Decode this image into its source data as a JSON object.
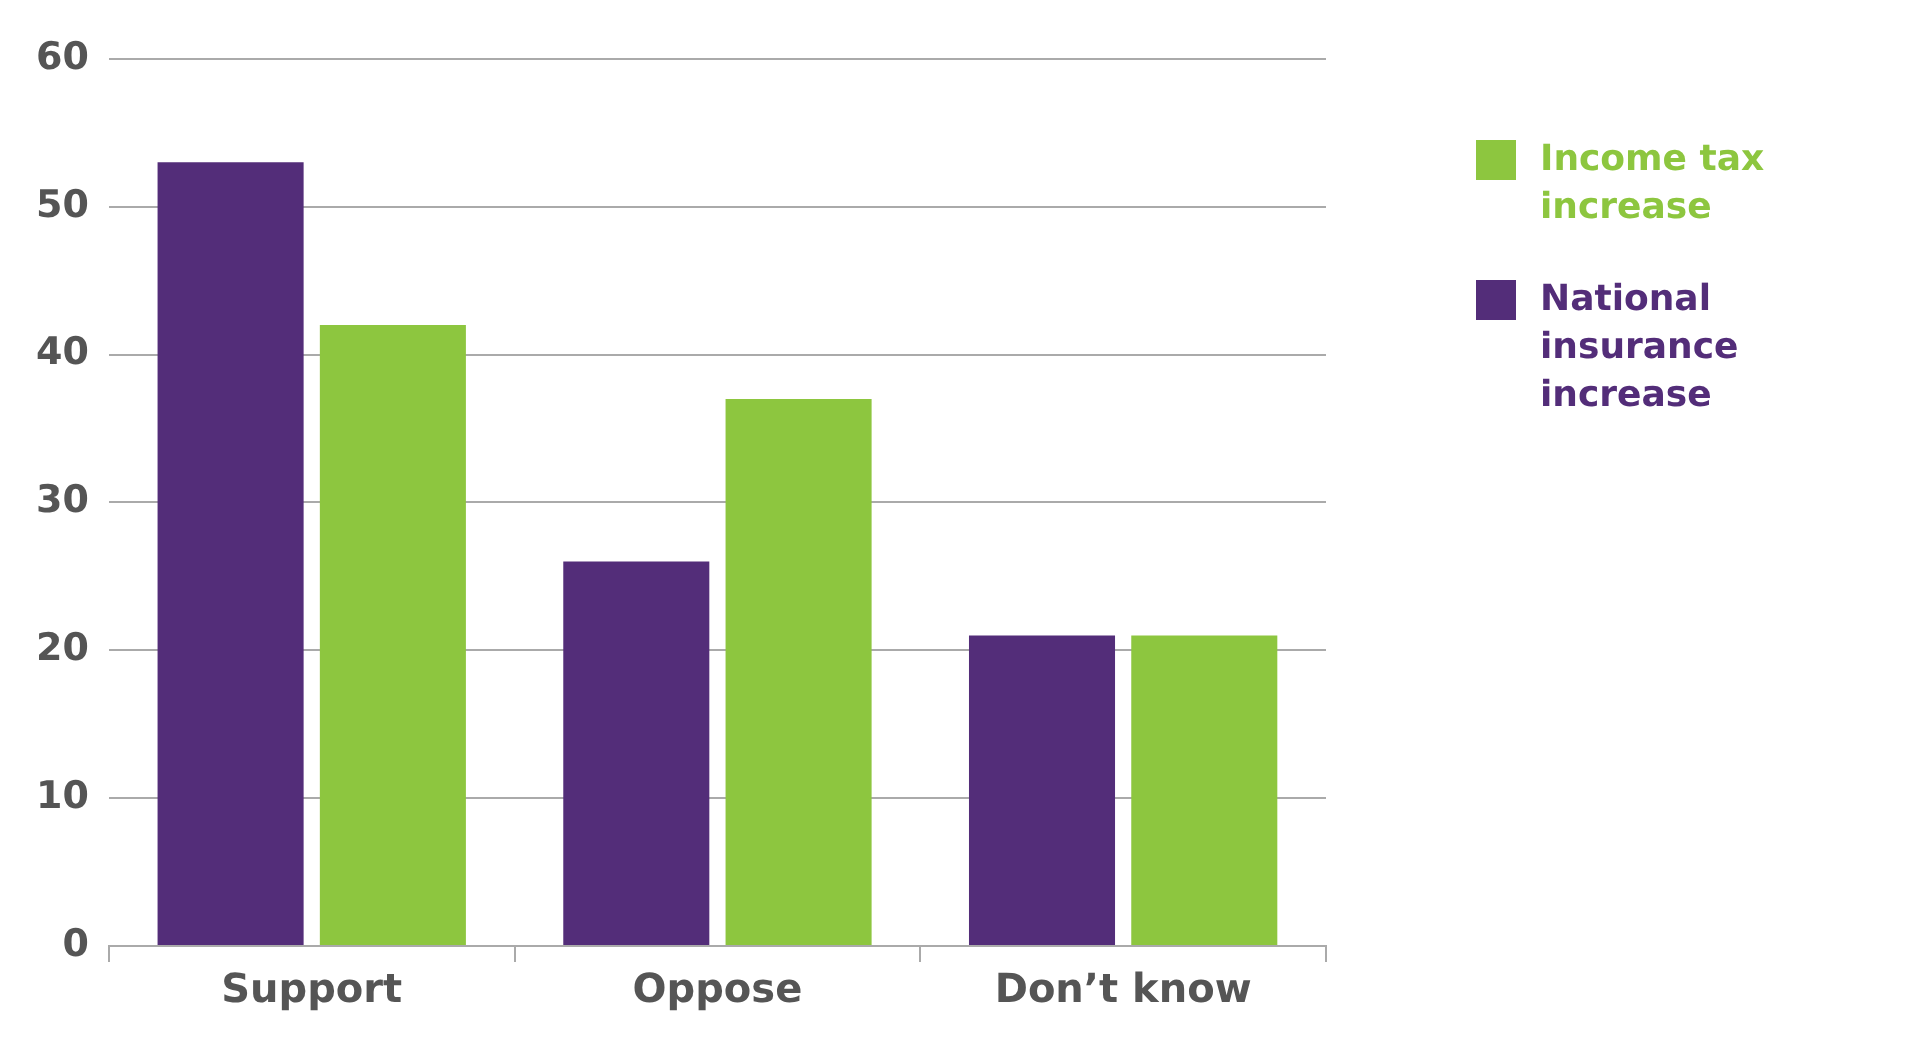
{
  "chart_data": {
    "type": "bar",
    "categories": [
      "Support",
      "Oppose",
      "Don’t know"
    ],
    "series": [
      {
        "name": "National insurance increase",
        "color": "#532d79",
        "values": [
          53,
          26,
          21
        ]
      },
      {
        "name": "Income tax increase",
        "color": "#8dc63f",
        "values": [
          42,
          37,
          21
        ]
      }
    ],
    "ylim": [
      0,
      60
    ],
    "yticks": [
      0,
      10,
      20,
      30,
      40,
      50,
      60
    ],
    "grid": "y",
    "legend": "top right"
  }
}
